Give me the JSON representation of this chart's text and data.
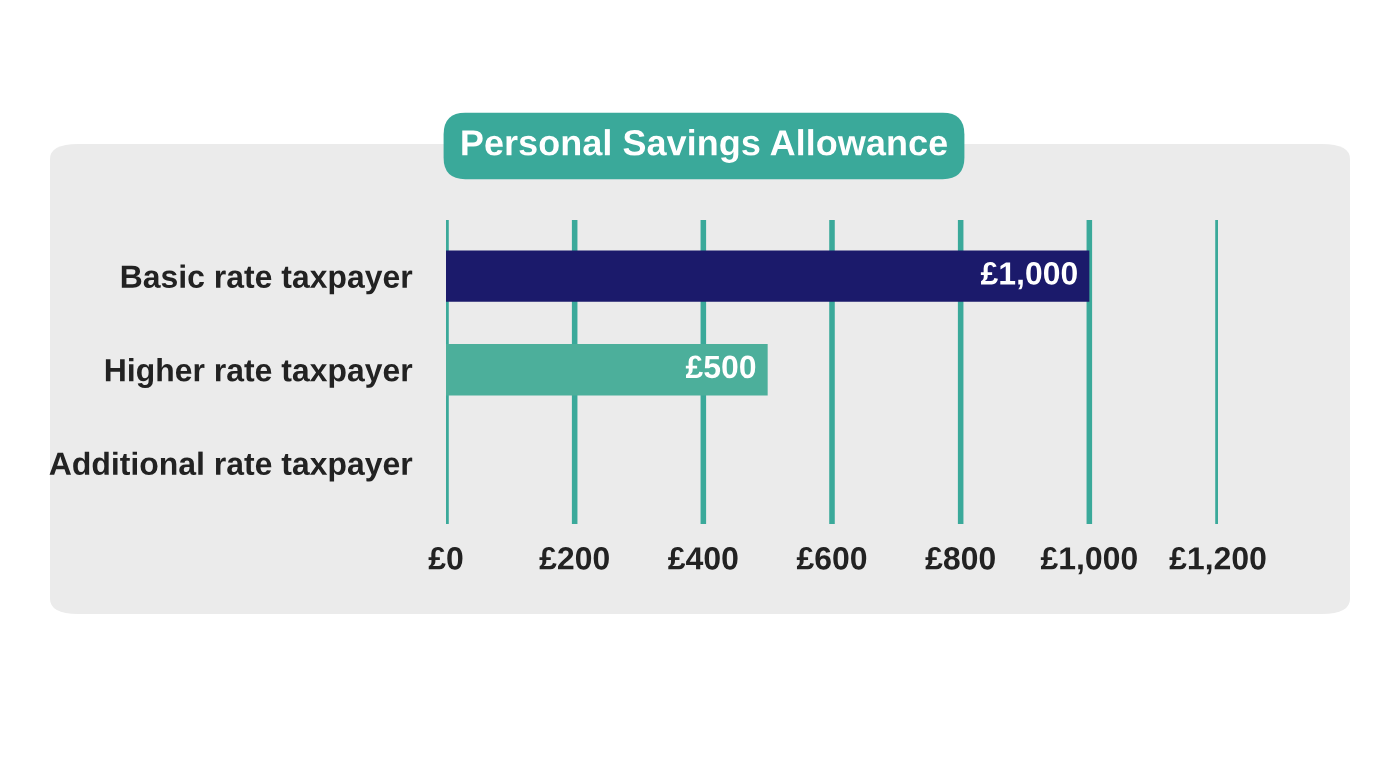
{
  "chart_data": {
    "type": "bar",
    "orientation": "horizontal",
    "title": "Personal Savings Allowance",
    "categories": [
      "Basic rate taxpayer",
      "Higher rate taxpayer",
      "Additional rate taxpayer"
    ],
    "values": [
      1000,
      500,
      0
    ],
    "colors": [
      "#1b1a6b",
      "#4caf9b",
      "#4caf9b"
    ],
    "value_labels": [
      "£1,000",
      "£500",
      null
    ],
    "xlim": [
      0,
      1200
    ],
    "xticks": [
      {
        "value": 0,
        "label": "£0"
      },
      {
        "value": 200,
        "label": "£200"
      },
      {
        "value": 400,
        "label": "£400"
      },
      {
        "value": 600,
        "label": "£600"
      },
      {
        "value": 800,
        "label": "£800"
      },
      {
        "value": 1000,
        "label": "£1,000"
      },
      {
        "value": 1200,
        "label": "£1,200"
      }
    ],
    "grid": "x"
  }
}
